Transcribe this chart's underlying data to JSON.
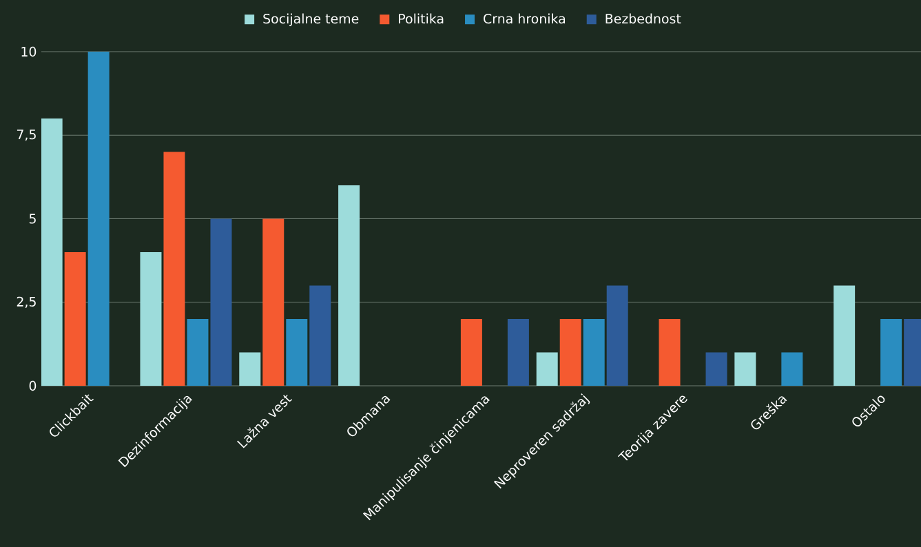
{
  "chart_data": {
    "type": "bar",
    "categories": [
      "Clickbait",
      "Dezinformacija",
      "Lažna vest",
      "Obmana",
      "Manipulisanje činjenicama",
      "Neproveren sadržaj",
      "Teorija zavere",
      "Greška",
      "Ostalo"
    ],
    "series": [
      {
        "name": "Socijalne teme",
        "color": "#9ddcdb",
        "values": [
          8,
          4,
          1,
          6,
          null,
          1,
          null,
          1,
          3
        ]
      },
      {
        "name": "Politika",
        "color": "#f55a30",
        "values": [
          4,
          7,
          5,
          null,
          2,
          2,
          2,
          null,
          null
        ]
      },
      {
        "name": "Crna hronika",
        "color": "#2a8dc0",
        "values": [
          10,
          2,
          2,
          null,
          null,
          2,
          null,
          1,
          2
        ]
      },
      {
        "name": "Bezbednost",
        "color": "#2e5c9a",
        "values": [
          null,
          5,
          3,
          null,
          2,
          3,
          1,
          null,
          2
        ]
      }
    ],
    "ylim": [
      0,
      10
    ],
    "yticks": [
      0,
      {
        "value": 2.5,
        "label": "2,5"
      },
      5,
      {
        "value": 7.5,
        "label": "7,5"
      },
      10
    ],
    "grid": "y",
    "legend": "top"
  }
}
